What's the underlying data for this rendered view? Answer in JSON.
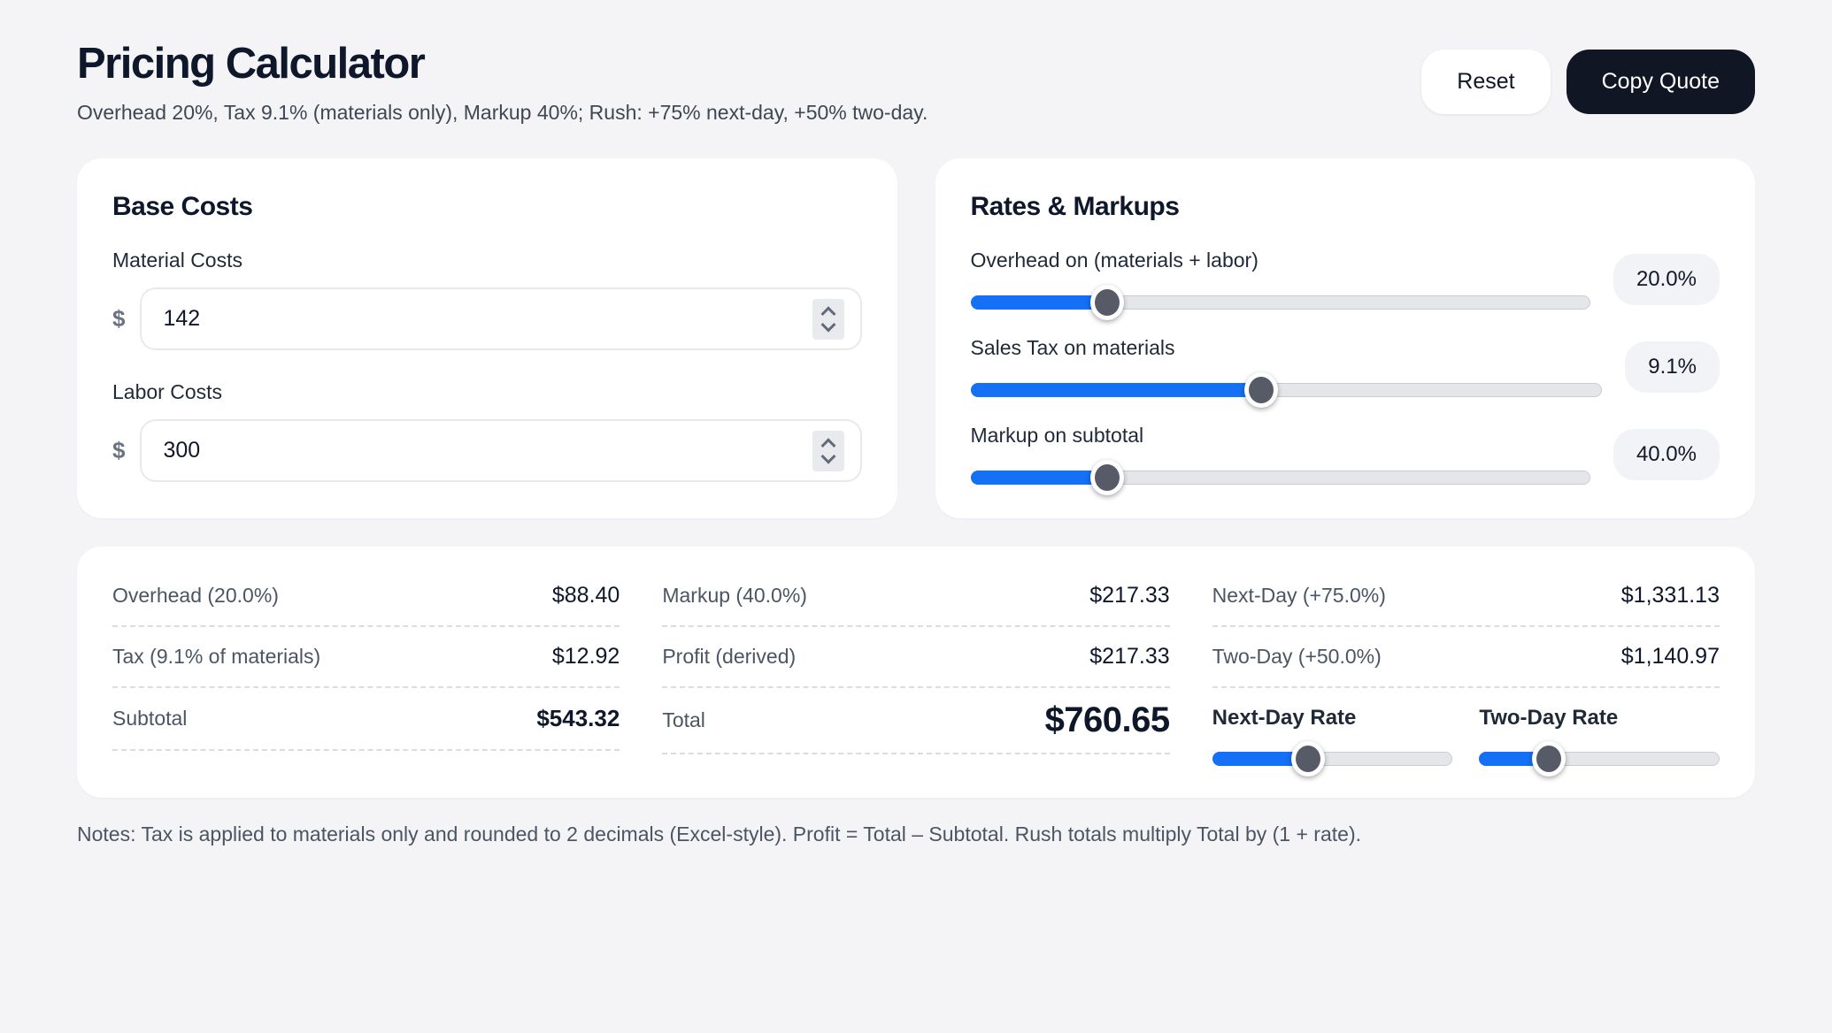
{
  "page": {
    "title": "Pricing Calculator",
    "subtitle": "Overhead 20%, Tax 9.1% (materials only), Markup 40%; Rush: +75% next-day, +50% two-day.",
    "notes": "Notes: Tax is applied to materials only and rounded to 2 decimals (Excel-style). Profit = Total – Subtotal. Rush totals multiply Total by (1 + rate)."
  },
  "header": {
    "reset_label": "Reset",
    "copy_quote_label": "Copy Quote"
  },
  "base_costs": {
    "heading": "Base Costs",
    "currency_symbol": "$",
    "material": {
      "label": "Material Costs",
      "value": "142"
    },
    "labor": {
      "label": "Labor Costs",
      "value": "300"
    }
  },
  "rates": {
    "heading": "Rates & Markups",
    "sliders": [
      {
        "label": "Overhead on (materials + labor)",
        "value": "20.0%",
        "fill_pct": 22
      },
      {
        "label": "Sales Tax on materials",
        "value": "9.1%",
        "fill_pct": 46
      },
      {
        "label": "Markup on subtotal",
        "value": "40.0%",
        "fill_pct": 22
      }
    ]
  },
  "summary": {
    "col1": {
      "rows": [
        {
          "label": "Overhead (20.0%)",
          "value": "$88.40"
        },
        {
          "label": "Tax (9.1% of materials)",
          "value": "$12.92"
        },
        {
          "label": "Subtotal",
          "value": "$543.32"
        }
      ]
    },
    "col2": {
      "rows": [
        {
          "label": "Markup (40.0%)",
          "value": "$217.33"
        },
        {
          "label": "Profit (derived)",
          "value": "$217.33"
        },
        {
          "label": "Total",
          "value": "$760.65"
        }
      ]
    },
    "col3": {
      "rows": [
        {
          "label": "Next-Day (+75.0%)",
          "value": "$1,331.13"
        },
        {
          "label": "Two-Day (+50.0%)",
          "value": "$1,140.97"
        }
      ],
      "rate_sliders": [
        {
          "label": "Next-Day Rate",
          "fill_pct": 40
        },
        {
          "label": "Two-Day Rate",
          "fill_pct": 29
        }
      ]
    }
  },
  "colors": {
    "accent_blue": "#1470f4",
    "thumb_gray": "#575b68",
    "dark_button": "#101623"
  }
}
